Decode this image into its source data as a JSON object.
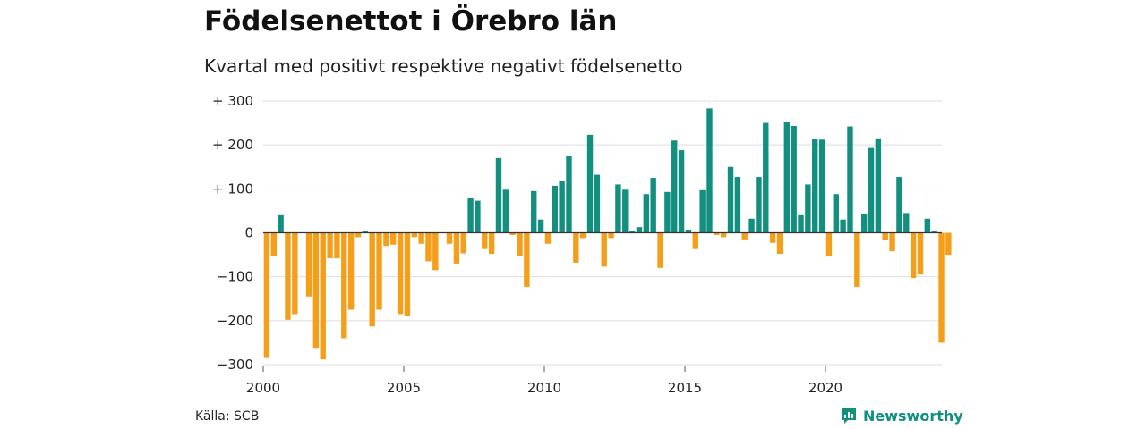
{
  "title": "Födelsenettot i Örebro län",
  "subtitle": "Kvartal med positivt respektive negativt födelsenetto",
  "source": "Källa: SCB",
  "brand": "Newsworthy",
  "colors": {
    "positive": "#138f80",
    "negative": "#f59e1a",
    "grid": "#dddddd",
    "brand": "#12907f"
  },
  "chart_data": {
    "type": "bar",
    "title": "Födelsenettot i Örebro län",
    "subtitle": "Kvartal med positivt respektive negativt födelsenetto",
    "xlabel": "",
    "ylabel": "",
    "ylim": [
      -300,
      300
    ],
    "xlim": [
      "2000-Q1",
      "2024-Q1"
    ],
    "grid": true,
    "y_ticks": [
      {
        "value": 300,
        "label": "+ 300"
      },
      {
        "value": 200,
        "label": "+ 200"
      },
      {
        "value": 100,
        "label": "+ 100"
      },
      {
        "value": 0,
        "label": "0"
      },
      {
        "value": -100,
        "label": "−100"
      },
      {
        "value": -200,
        "label": "−200"
      },
      {
        "value": -300,
        "label": "−300"
      }
    ],
    "x_ticks": [
      {
        "value": "2000-Q1",
        "label": "2000"
      },
      {
        "value": "2005-Q1",
        "label": "2005"
      },
      {
        "value": "2010-Q1",
        "label": "2010"
      },
      {
        "value": "2015-Q1",
        "label": "2015"
      },
      {
        "value": "2020-Q1",
        "label": "2020"
      }
    ],
    "categories": [
      "2000-Q1",
      "2000-Q2",
      "2000-Q3",
      "2000-Q4",
      "2001-Q1",
      "2001-Q2",
      "2001-Q3",
      "2001-Q4",
      "2002-Q1",
      "2002-Q2",
      "2002-Q3",
      "2002-Q4",
      "2003-Q1",
      "2003-Q2",
      "2003-Q3",
      "2003-Q4",
      "2004-Q1",
      "2004-Q2",
      "2004-Q3",
      "2004-Q4",
      "2005-Q1",
      "2005-Q2",
      "2005-Q3",
      "2005-Q4",
      "2006-Q1",
      "2006-Q2",
      "2006-Q3",
      "2006-Q4",
      "2007-Q1",
      "2007-Q2",
      "2007-Q3",
      "2007-Q4",
      "2008-Q1",
      "2008-Q2",
      "2008-Q3",
      "2008-Q4",
      "2009-Q1",
      "2009-Q2",
      "2009-Q3",
      "2009-Q4",
      "2010-Q1",
      "2010-Q2",
      "2010-Q3",
      "2010-Q4",
      "2011-Q1",
      "2011-Q2",
      "2011-Q3",
      "2011-Q4",
      "2012-Q1",
      "2012-Q2",
      "2012-Q3",
      "2012-Q4",
      "2013-Q1",
      "2013-Q2",
      "2013-Q3",
      "2013-Q4",
      "2014-Q1",
      "2014-Q2",
      "2014-Q3",
      "2014-Q4",
      "2015-Q1",
      "2015-Q2",
      "2015-Q3",
      "2015-Q4",
      "2016-Q1",
      "2016-Q2",
      "2016-Q3",
      "2016-Q4",
      "2017-Q1",
      "2017-Q2",
      "2017-Q3",
      "2017-Q4",
      "2018-Q1",
      "2018-Q2",
      "2018-Q3",
      "2018-Q4",
      "2019-Q1",
      "2019-Q2",
      "2019-Q3",
      "2019-Q4",
      "2020-Q1",
      "2020-Q2",
      "2020-Q3",
      "2020-Q4",
      "2021-Q1",
      "2021-Q2",
      "2021-Q3",
      "2021-Q4",
      "2022-Q1",
      "2022-Q2",
      "2022-Q3",
      "2022-Q4",
      "2023-Q1",
      "2023-Q2",
      "2023-Q3",
      "2023-Q4",
      "2024-Q1",
      "2024-Q2"
    ],
    "values": [
      -285,
      -52,
      40,
      -198,
      -185,
      0,
      -145,
      -262,
      -288,
      -58,
      -58,
      -240,
      -175,
      -10,
      3,
      -213,
      -175,
      -30,
      -27,
      -185,
      -190,
      -10,
      -25,
      -65,
      -85,
      0,
      -25,
      -70,
      -47,
      80,
      73,
      -37,
      -48,
      170,
      98,
      -5,
      -52,
      -123,
      95,
      30,
      -25,
      107,
      117,
      175,
      -68,
      -12,
      223,
      132,
      -77,
      -12,
      110,
      98,
      5,
      13,
      88,
      125,
      -80,
      93,
      210,
      188,
      7,
      -37,
      97,
      283,
      -5,
      -10,
      150,
      127,
      -15,
      32,
      127,
      250,
      -23,
      -48,
      252,
      243,
      40,
      110,
      213,
      212,
      -52,
      88,
      30,
      242,
      -123,
      43,
      193,
      215,
      -17,
      -42,
      127,
      45,
      -103,
      -95,
      32,
      3,
      -250,
      -50
    ]
  }
}
